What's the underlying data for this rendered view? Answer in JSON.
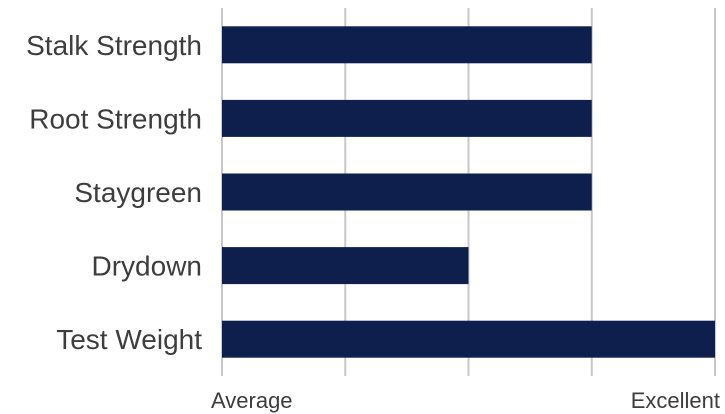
{
  "chart_data": {
    "type": "bar",
    "orientation": "horizontal",
    "categories": [
      "Stalk Strength",
      "Root Strength",
      "Staygreen",
      "Drydown",
      "Test Weight"
    ],
    "values": [
      3,
      3,
      3,
      2,
      4
    ],
    "xlim": [
      0,
      4
    ],
    "x_tick_labels": [
      {
        "value": 0,
        "label": "Average"
      },
      {
        "value": 4,
        "label": "Excellent"
      }
    ],
    "grid": true,
    "bar_color": "#0f1f4d",
    "grid_color": "#c8c8c8"
  }
}
